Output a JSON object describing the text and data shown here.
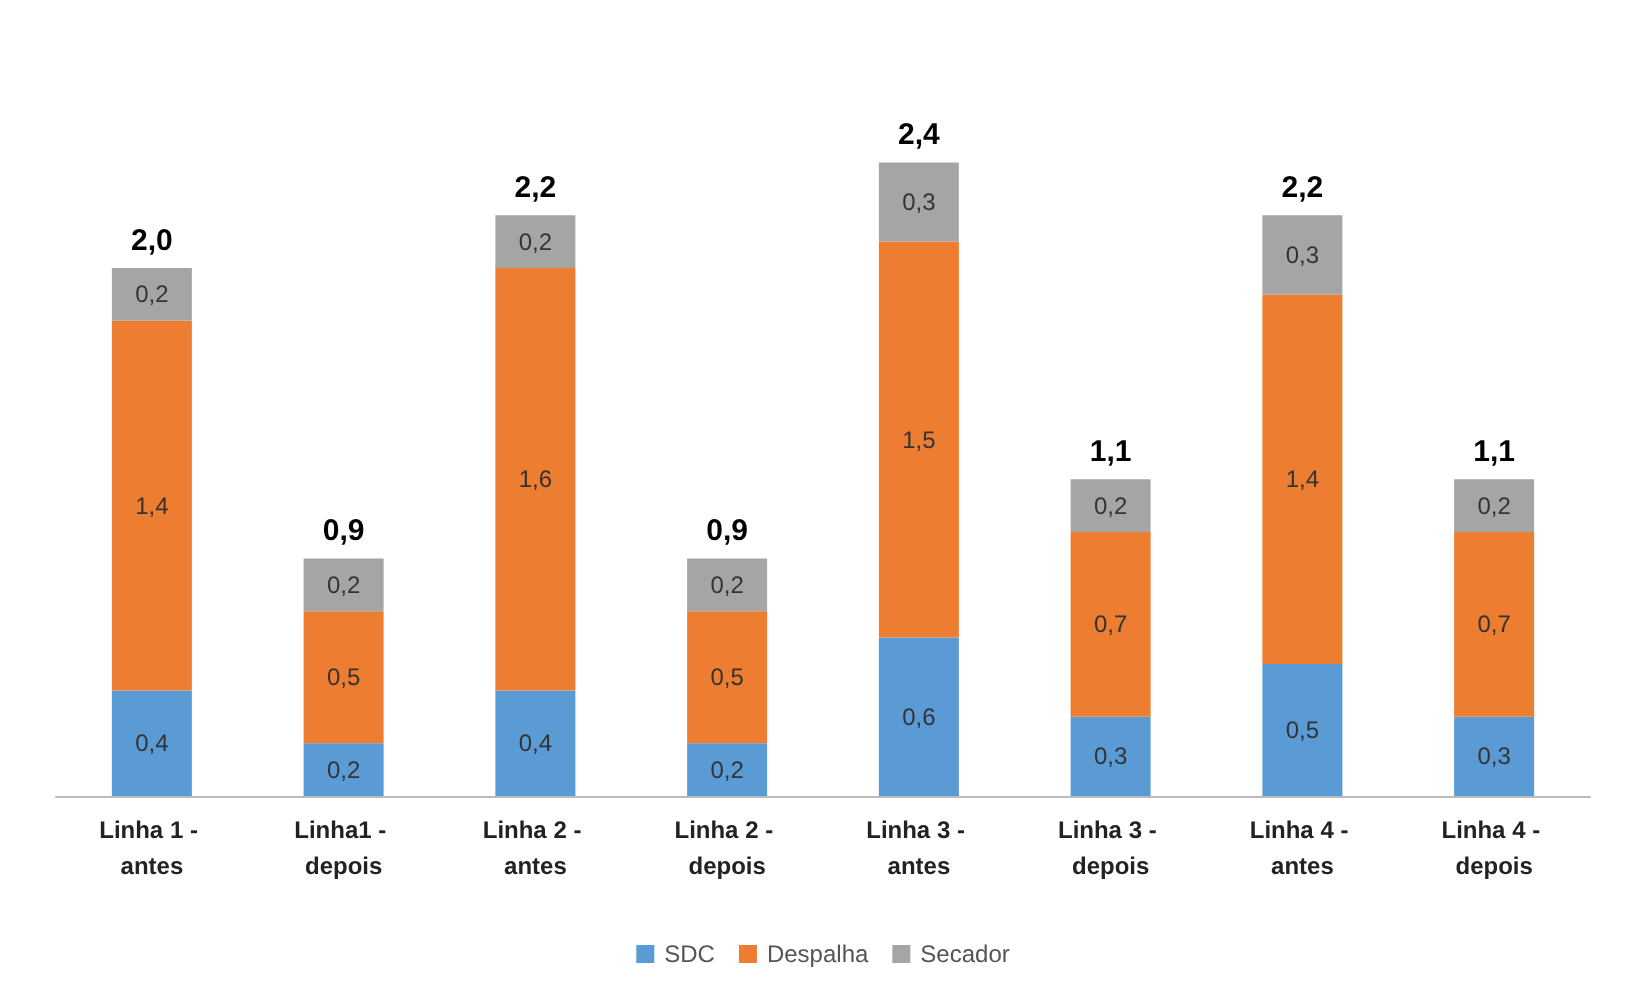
{
  "chart_data": {
    "type": "bar",
    "stacked": true,
    "categories": [
      "Linha 1 - antes",
      "Linha1 - depois",
      "Linha 2 - antes",
      "Linha 2 - depois",
      "Linha 3 - antes",
      "Linha 3 - depois",
      "Linha 4 - antes",
      "Linha 4 - depois"
    ],
    "series": [
      {
        "name": "SDC",
        "color": "#5b9bd5",
        "values": [
          0.4,
          0.2,
          0.4,
          0.2,
          0.6,
          0.3,
          0.5,
          0.3
        ],
        "value_labels": [
          "0,4",
          "0,2",
          "0,4",
          "0,2",
          "0,6",
          "0,3",
          "0,5",
          "0,3"
        ]
      },
      {
        "name": "Despalha",
        "color": "#ed7d31",
        "values": [
          1.4,
          0.5,
          1.6,
          0.5,
          1.5,
          0.7,
          1.4,
          0.7
        ],
        "value_labels": [
          "1,4",
          "0,5",
          "1,6",
          "0,5",
          "1,5",
          "0,7",
          "1,4",
          "0,7"
        ]
      },
      {
        "name": "Secador",
        "color": "#a5a5a5",
        "values": [
          0.2,
          0.2,
          0.2,
          0.2,
          0.3,
          0.2,
          0.3,
          0.2
        ],
        "value_labels": [
          "0,2",
          "0,2",
          "0,2",
          "0,2",
          "0,3",
          "0,2",
          "0,3",
          "0,2"
        ]
      }
    ],
    "totals": [
      "2,0",
      "0,9",
      "2,2",
      "0,9",
      "2,4",
      "1,1",
      "2,2",
      "1,1"
    ],
    "legend": "bottom"
  }
}
